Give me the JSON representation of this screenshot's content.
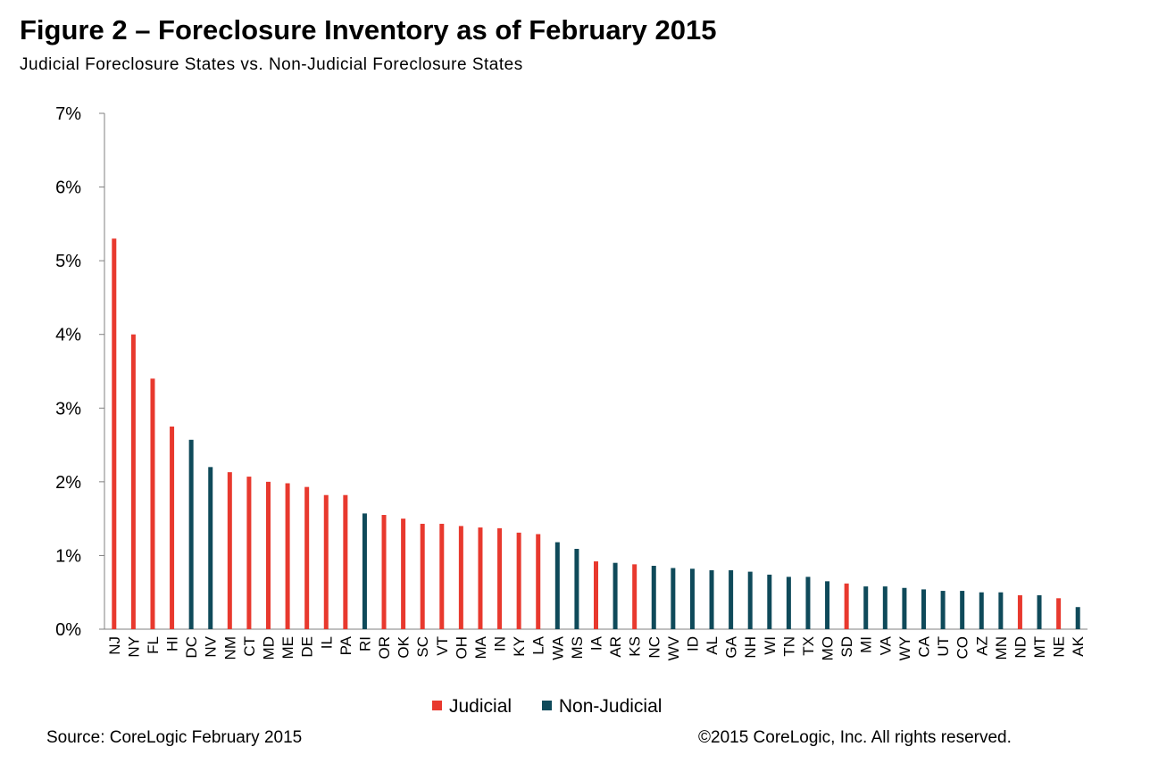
{
  "title": "Figure 2 – Foreclosure Inventory as of February 2015",
  "subtitle": "Judicial Foreclosure States vs. Non-Judicial Foreclosure States",
  "source": "Source: CoreLogic February 2015",
  "copyright": "©2015 CoreLogic, Inc. All rights reserved.",
  "colors": {
    "Judicial": "#e8392e",
    "Non-Judicial": "#0f4a5a"
  },
  "chart_data": {
    "type": "bar",
    "title": "Figure 2 – Foreclosure Inventory as of February 2015",
    "subtitle": "Judicial Foreclosure States vs. Non-Judicial Foreclosure States",
    "xlabel": "",
    "ylabel": "",
    "ylim": [
      0,
      7
    ],
    "yticks": [
      "0%",
      "1%",
      "2%",
      "3%",
      "4%",
      "5%",
      "6%",
      "7%"
    ],
    "grid": false,
    "legend": "bottom",
    "unit": "%",
    "categories": [
      "NJ",
      "NY",
      "FL",
      "HI",
      "DC",
      "NV",
      "NM",
      "CT",
      "MD",
      "ME",
      "DE",
      "IL",
      "PA",
      "RI",
      "OR",
      "OK",
      "SC",
      "VT",
      "OH",
      "MA",
      "IN",
      "KY",
      "LA",
      "WA",
      "MS",
      "IA",
      "AR",
      "KS",
      "NC",
      "WV",
      "ID",
      "AL",
      "GA",
      "NH",
      "WI",
      "TN",
      "TX",
      "MO",
      "SD",
      "MI",
      "VA",
      "WY",
      "CA",
      "UT",
      "CO",
      "AZ",
      "MN",
      "ND",
      "MT",
      "NE",
      "AK"
    ],
    "values": [
      5.3,
      4.0,
      3.4,
      2.75,
      2.57,
      2.2,
      2.13,
      2.07,
      2.0,
      1.98,
      1.93,
      1.82,
      1.82,
      1.57,
      1.55,
      1.5,
      1.43,
      1.43,
      1.4,
      1.38,
      1.37,
      1.31,
      1.29,
      1.18,
      1.09,
      0.92,
      0.9,
      0.88,
      0.86,
      0.83,
      0.82,
      0.8,
      0.8,
      0.78,
      0.74,
      0.71,
      0.71,
      0.65,
      0.62,
      0.58,
      0.58,
      0.56,
      0.54,
      0.52,
      0.52,
      0.5,
      0.5,
      0.46,
      0.46,
      0.42,
      0.3
    ],
    "groups": [
      "Judicial",
      "Judicial",
      "Judicial",
      "Judicial",
      "Non-Judicial",
      "Non-Judicial",
      "Judicial",
      "Judicial",
      "Judicial",
      "Judicial",
      "Judicial",
      "Judicial",
      "Judicial",
      "Non-Judicial",
      "Judicial",
      "Judicial",
      "Judicial",
      "Judicial",
      "Judicial",
      "Judicial",
      "Judicial",
      "Judicial",
      "Judicial",
      "Non-Judicial",
      "Non-Judicial",
      "Judicial",
      "Non-Judicial",
      "Judicial",
      "Non-Judicial",
      "Non-Judicial",
      "Non-Judicial",
      "Non-Judicial",
      "Non-Judicial",
      "Non-Judicial",
      "Non-Judicial",
      "Non-Judicial",
      "Non-Judicial",
      "Non-Judicial",
      "Judicial",
      "Non-Judicial",
      "Non-Judicial",
      "Non-Judicial",
      "Non-Judicial",
      "Non-Judicial",
      "Non-Judicial",
      "Non-Judicial",
      "Non-Judicial",
      "Judicial",
      "Non-Judicial",
      "Judicial",
      "Non-Judicial"
    ],
    "series_names": [
      "Judicial",
      "Non-Judicial"
    ]
  }
}
